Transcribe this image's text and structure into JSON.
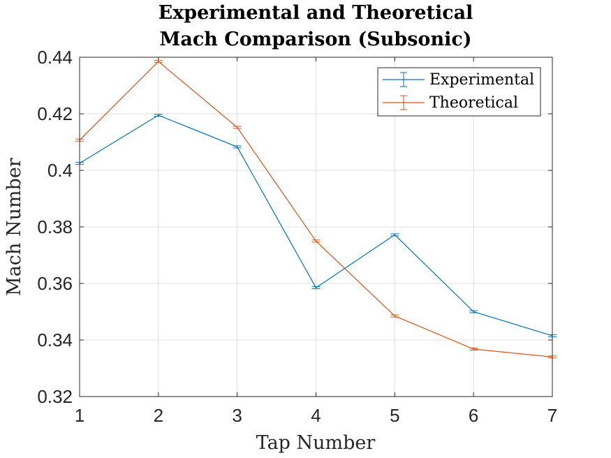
{
  "chart_data": {
    "type": "line",
    "title": [
      "Experimental and Theoretical",
      "Mach Comparison (Subsonic)"
    ],
    "xlabel": "Tap Number",
    "ylabel": "Mach Number",
    "x": [
      1,
      2,
      3,
      4,
      5,
      6,
      7
    ],
    "xlim": [
      1,
      7
    ],
    "ylim": [
      0.32,
      0.44
    ],
    "xticks": [
      "1",
      "2",
      "3",
      "4",
      "5",
      "6",
      "7"
    ],
    "yticks": [
      "0.32",
      "0.34",
      "0.36",
      "0.38",
      "0.4",
      "0.42",
      "0.44"
    ],
    "grid": true,
    "error_bars": true,
    "legend_position": "top-right",
    "series": [
      {
        "name": "Experimental",
        "color": "#0072bd",
        "values": [
          0.4025,
          0.4195,
          0.4083,
          0.3585,
          0.3772,
          0.35,
          0.3415
        ]
      },
      {
        "name": "Theoretical",
        "color": "#d95319",
        "values": [
          0.4107,
          0.4385,
          0.4152,
          0.375,
          0.3485,
          0.3368,
          0.334
        ]
      }
    ]
  }
}
